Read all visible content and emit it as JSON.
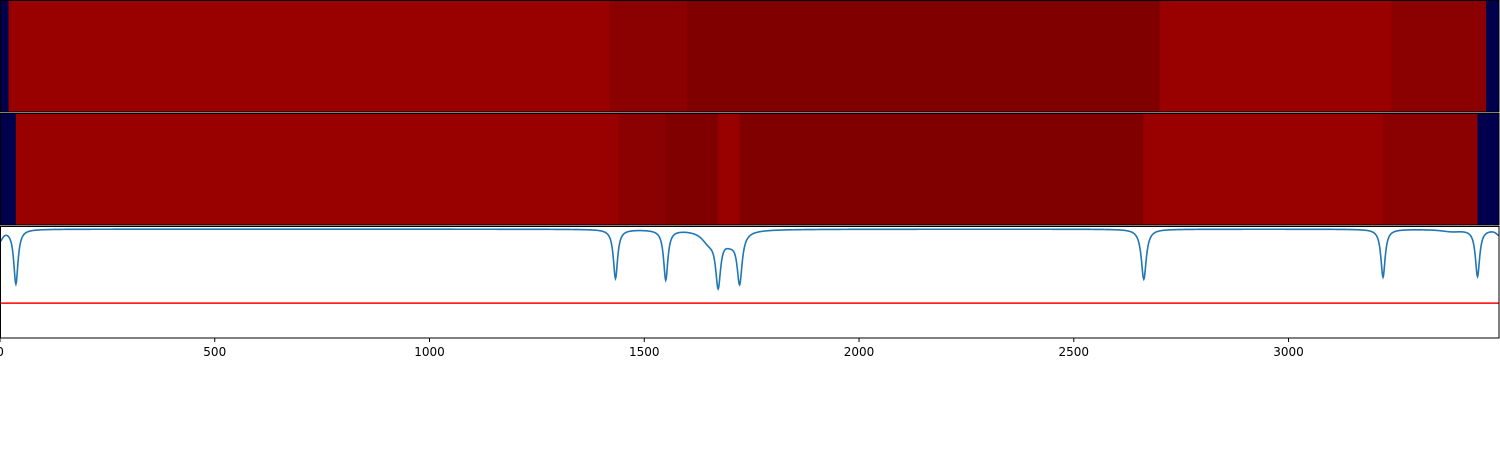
{
  "chart_data": [
    {
      "type": "heatmap",
      "xlim": [
        0,
        3490
      ],
      "colors": {
        "dark_blue": "#00004c",
        "red_high": "#990000",
        "red_mid": "#8b0000",
        "red_low": "#800000"
      },
      "segments": [
        {
          "start": 0,
          "end": 20,
          "color": "#00004c"
        },
        {
          "start": 20,
          "end": 1420,
          "color": "#990000"
        },
        {
          "start": 1420,
          "end": 1600,
          "color": "#8b0000"
        },
        {
          "start": 1600,
          "end": 2700,
          "color": "#800000"
        },
        {
          "start": 2700,
          "end": 3240,
          "color": "#990000"
        },
        {
          "start": 3240,
          "end": 3460,
          "color": "#8b0000"
        },
        {
          "start": 3460,
          "end": 3490,
          "color": "#00004c"
        }
      ]
    },
    {
      "type": "heatmap",
      "xlim": [
        0,
        3490
      ],
      "segments": [
        {
          "start": 0,
          "end": 37,
          "color": "#00004c"
        },
        {
          "start": 37,
          "end": 1440,
          "color": "#990000"
        },
        {
          "start": 1440,
          "end": 1550,
          "color": "#8b0000"
        },
        {
          "start": 1550,
          "end": 1672,
          "color": "#800000"
        },
        {
          "start": 1672,
          "end": 1722,
          "color": "#990000"
        },
        {
          "start": 1722,
          "end": 2662,
          "color": "#800000"
        },
        {
          "start": 2662,
          "end": 3220,
          "color": "#990000"
        },
        {
          "start": 3220,
          "end": 3440,
          "color": "#8b0000"
        },
        {
          "start": 3440,
          "end": 3490,
          "color": "#00004c"
        }
      ]
    },
    {
      "type": "line",
      "xlim": [
        0,
        3490
      ],
      "ylim": [
        -1.0,
        0.02
      ],
      "xticks": [
        0,
        500,
        1000,
        1500,
        2000,
        2500,
        3000
      ],
      "xtick_labels": [
        "0",
        "500",
        "1000",
        "1500",
        "2000",
        "2500",
        "3000"
      ],
      "threshold": {
        "value": -0.68,
        "color": "#ff0000"
      },
      "series": [
        {
          "color": "#1f77b4",
          "baseline": 0,
          "dips": [
            {
              "x": 0,
              "depth": 0.1,
              "width": 8
            },
            {
              "x": 37,
              "depth": 0.5,
              "width": 6
            },
            {
              "x": 1433,
              "depth": 0.45,
              "width": 6
            },
            {
              "x": 1550,
              "depth": 0.46,
              "width": 6
            },
            {
              "x": 1650,
              "depth": 0.1,
              "width": 20
            },
            {
              "x": 1672,
              "depth": 0.46,
              "width": 7
            },
            {
              "x": 1700,
              "depth": 0.1,
              "width": 20
            },
            {
              "x": 1722,
              "depth": 0.45,
              "width": 7
            },
            {
              "x": 2663,
              "depth": 0.46,
              "width": 7
            },
            {
              "x": 3220,
              "depth": 0.44,
              "width": 6
            },
            {
              "x": 3380,
              "depth": 0.02,
              "width": 30
            },
            {
              "x": 3440,
              "depth": 0.43,
              "width": 6
            },
            {
              "x": 3490,
              "depth": 0.05,
              "width": 8
            }
          ]
        }
      ]
    }
  ]
}
